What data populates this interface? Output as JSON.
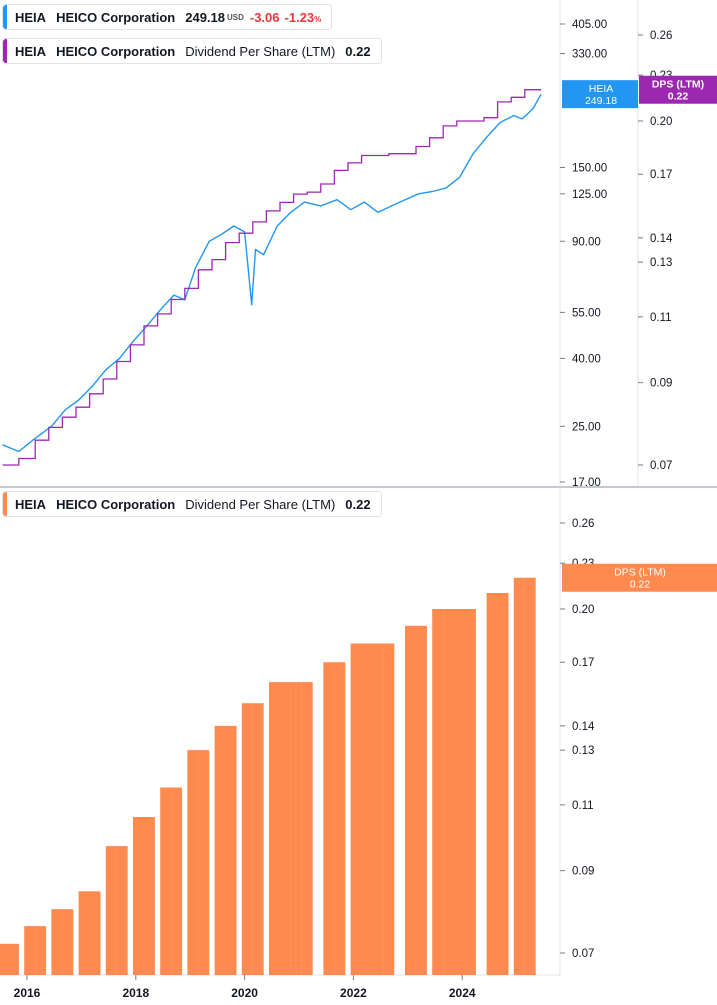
{
  "legends": {
    "price": {
      "symbol": "HEIA",
      "name": "HEICO Corporation",
      "last": "249.18",
      "currency": "USD",
      "change": "-3.06",
      "change_pct": "-1.23",
      "pct_sign": "%"
    },
    "dps_top": {
      "symbol": "HEIA",
      "name": "HEICO Corporation",
      "indicator": "Dividend Per Share (LTM)",
      "value": "0.22"
    },
    "dps_bottom": {
      "symbol": "HEIA",
      "name": "HEICO Corporation",
      "indicator": "Dividend Per Share (LTM)",
      "value": "0.22"
    }
  },
  "colors": {
    "price": "#2196f3",
    "dps_line": "#9c27b0",
    "bars": "#ff8a50",
    "axis_text": "#131722",
    "grid_border": "#e0e3eb"
  },
  "chart_data": [
    {
      "type": "line",
      "scale": "log",
      "series": [
        {
          "name": "HEIA",
          "color": "#2196f3",
          "x": [
            2015.55,
            2015.85,
            2016.15,
            2016.45,
            2016.7,
            2016.95,
            2017.2,
            2017.45,
            2017.7,
            2017.95,
            2018.2,
            2018.45,
            2018.7,
            2018.9,
            2019.1,
            2019.35,
            2019.6,
            2019.8,
            2020.0,
            2020.13,
            2020.2,
            2020.35,
            2020.6,
            2020.85,
            2021.1,
            2021.4,
            2021.7,
            2021.95,
            2022.2,
            2022.45,
            2022.7,
            2022.95,
            2023.2,
            2023.45,
            2023.7,
            2023.95,
            2024.2,
            2024.45,
            2024.7,
            2024.95,
            2025.1,
            2025.3,
            2025.45
          ],
          "y": [
            22,
            21,
            23,
            25,
            28,
            30,
            33,
            37,
            40,
            45,
            50,
            56,
            62,
            60,
            75,
            90,
            95,
            100,
            96,
            58,
            85,
            82,
            100,
            110,
            118,
            115,
            120,
            112,
            118,
            110,
            115,
            120,
            125,
            127,
            130,
            140,
            165,
            185,
            205,
            215,
            210,
            225,
            249.18
          ]
        },
        {
          "name": "Dividend Per Share (LTM)",
          "color": "#9c27b0",
          "step": true,
          "x": [
            2015.55,
            2015.85,
            2016.15,
            2016.4,
            2016.65,
            2016.9,
            2017.15,
            2017.4,
            2017.65,
            2017.9,
            2018.15,
            2018.4,
            2018.65,
            2018.9,
            2019.15,
            2019.4,
            2019.65,
            2019.9,
            2020.15,
            2020.4,
            2020.65,
            2020.9,
            2021.15,
            2021.4,
            2021.65,
            2021.9,
            2022.15,
            2022.4,
            2022.65,
            2022.9,
            2023.15,
            2023.4,
            2023.65,
            2023.9,
            2024.15,
            2024.4,
            2024.65,
            2024.9,
            2025.15,
            2025.45
          ],
          "y": [
            0.07,
            0.0714,
            0.0755,
            0.0785,
            0.081,
            0.0835,
            0.087,
            0.091,
            0.096,
            0.101,
            0.107,
            0.111,
            0.116,
            0.12,
            0.127,
            0.131,
            0.138,
            0.142,
            0.147,
            0.152,
            0.156,
            0.16,
            0.161,
            0.165,
            0.172,
            0.176,
            0.18,
            0.18,
            0.181,
            0.181,
            0.185,
            0.19,
            0.197,
            0.2,
            0.2,
            0.202,
            0.212,
            0.215,
            0.22,
            0.22
          ]
        }
      ],
      "price_axis": {
        "ticks": [
          "405.00",
          "330.00",
          "150.00",
          "125.00",
          "90.00",
          "55.00",
          "40.00",
          "25.00",
          "17.00"
        ],
        "marker": {
          "label": "HEIA",
          "value": "249.18"
        }
      },
      "dps_axis": {
        "ticks": [
          "0.26",
          "0.23",
          "0.20",
          "0.17",
          "0.14",
          "0.13",
          "0.11",
          "0.09",
          "0.07"
        ],
        "marker": {
          "label": "DPS (LTM)",
          "value": "0.22"
        }
      }
    },
    {
      "type": "bar",
      "scale": "log",
      "x_ticks": [
        "2016",
        "2018",
        "2020",
        "2022",
        "2024"
      ],
      "bars": [
        {
          "x": 2015.55,
          "v": 0.072
        },
        {
          "x": 2015.75,
          "v": 0.072
        },
        {
          "x": 2016.05,
          "v": 0.076
        },
        {
          "x": 2016.25,
          "v": 0.076
        },
        {
          "x": 2016.55,
          "v": 0.08
        },
        {
          "x": 2016.75,
          "v": 0.08
        },
        {
          "x": 2017.05,
          "v": 0.0845
        },
        {
          "x": 2017.25,
          "v": 0.0845
        },
        {
          "x": 2017.55,
          "v": 0.097
        },
        {
          "x": 2017.75,
          "v": 0.097
        },
        {
          "x": 2018.05,
          "v": 0.106
        },
        {
          "x": 2018.25,
          "v": 0.106
        },
        {
          "x": 2018.55,
          "v": 0.116
        },
        {
          "x": 2018.75,
          "v": 0.116
        },
        {
          "x": 2019.05,
          "v": 0.13
        },
        {
          "x": 2019.25,
          "v": 0.13
        },
        {
          "x": 2019.55,
          "v": 0.14
        },
        {
          "x": 2019.75,
          "v": 0.14
        },
        {
          "x": 2020.05,
          "v": 0.15
        },
        {
          "x": 2020.25,
          "v": 0.15
        },
        {
          "x": 2020.55,
          "v": 0.16
        },
        {
          "x": 2020.75,
          "v": 0.16
        },
        {
          "x": 2020.95,
          "v": 0.16
        },
        {
          "x": 2021.15,
          "v": 0.16
        },
        {
          "x": 2021.55,
          "v": 0.17
        },
        {
          "x": 2021.75,
          "v": 0.17
        },
        {
          "x": 2022.05,
          "v": 0.18
        },
        {
          "x": 2022.25,
          "v": 0.18
        },
        {
          "x": 2022.45,
          "v": 0.18
        },
        {
          "x": 2022.65,
          "v": 0.18
        },
        {
          "x": 2023.05,
          "v": 0.19
        },
        {
          "x": 2023.25,
          "v": 0.19
        },
        {
          "x": 2023.55,
          "v": 0.2
        },
        {
          "x": 2023.75,
          "v": 0.2
        },
        {
          "x": 2023.95,
          "v": 0.2
        },
        {
          "x": 2024.15,
          "v": 0.2
        },
        {
          "x": 2024.55,
          "v": 0.21
        },
        {
          "x": 2024.75,
          "v": 0.21
        },
        {
          "x": 2025.05,
          "v": 0.22
        },
        {
          "x": 2025.25,
          "v": 0.22
        }
      ],
      "dps_axis": {
        "ticks": [
          "0.26",
          "0.23",
          "0.20",
          "0.17",
          "0.14",
          "0.13",
          "0.11",
          "0.09",
          "0.07"
        ],
        "marker": {
          "label": "DPS (LTM)",
          "value": "0.22"
        }
      }
    }
  ]
}
